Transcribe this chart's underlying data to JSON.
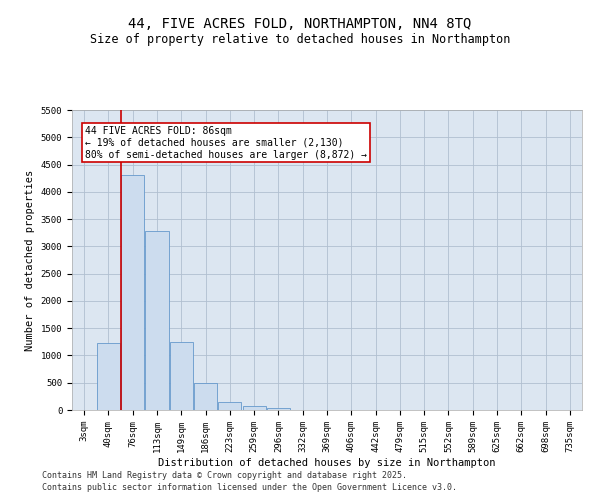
{
  "title": "44, FIVE ACRES FOLD, NORTHAMPTON, NN4 8TQ",
  "subtitle": "Size of property relative to detached houses in Northampton",
  "xlabel": "Distribution of detached houses by size in Northampton",
  "ylabel": "Number of detached properties",
  "categories": [
    "3sqm",
    "40sqm",
    "76sqm",
    "113sqm",
    "149sqm",
    "186sqm",
    "223sqm",
    "259sqm",
    "296sqm",
    "332sqm",
    "369sqm",
    "406sqm",
    "442sqm",
    "479sqm",
    "515sqm",
    "552sqm",
    "589sqm",
    "625sqm",
    "662sqm",
    "698sqm",
    "735sqm"
  ],
  "bar_values": [
    0,
    1220,
    4300,
    3280,
    1250,
    490,
    155,
    80,
    40,
    0,
    0,
    0,
    0,
    0,
    0,
    0,
    0,
    0,
    0,
    0,
    0
  ],
  "bar_color": "#ccdcee",
  "bar_edge_color": "#6699cc",
  "grid_color": "#b0bfd0",
  "background_color": "#dce6f1",
  "vline_color": "#cc0000",
  "vline_pos": 1.5,
  "annotation_text": "44 FIVE ACRES FOLD: 86sqm\n← 19% of detached houses are smaller (2,130)\n80% of semi-detached houses are larger (8,872) →",
  "annotation_box_color": "#ffffff",
  "annotation_box_edge": "#cc0000",
  "ylim": [
    0,
    5500
  ],
  "yticks": [
    0,
    500,
    1000,
    1500,
    2000,
    2500,
    3000,
    3500,
    4000,
    4500,
    5000,
    5500
  ],
  "footer1": "Contains HM Land Registry data © Crown copyright and database right 2025.",
  "footer2": "Contains public sector information licensed under the Open Government Licence v3.0.",
  "title_fontsize": 10,
  "subtitle_fontsize": 8.5,
  "axis_label_fontsize": 7.5,
  "tick_fontsize": 6.5,
  "annotation_fontsize": 7,
  "footer_fontsize": 6
}
